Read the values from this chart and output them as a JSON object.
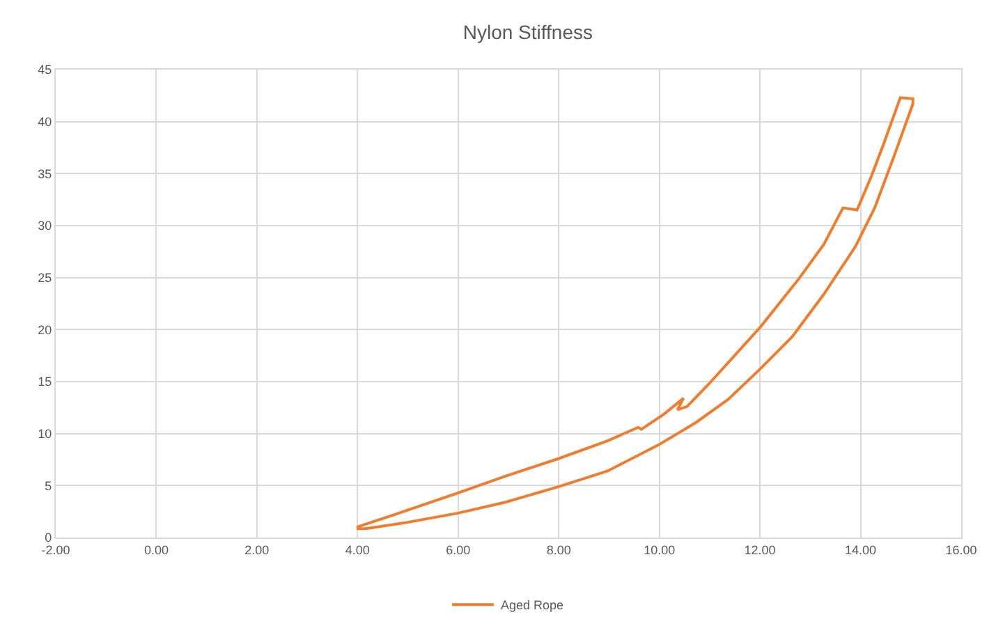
{
  "chart_data": {
    "type": "line",
    "title": "Nylon Stiffness",
    "series": [
      {
        "name": "Aged Rope",
        "color": "#ed7d31",
        "x": [
          3.98,
          4.67,
          6.0,
          6.94,
          8.0,
          8.97,
          9.58,
          9.64,
          10.1,
          10.48,
          10.36,
          10.55,
          10.99,
          12.0,
          12.76,
          13.27,
          13.65,
          13.93,
          14.22,
          14.47,
          14.79,
          15.04,
          15.04,
          14.66,
          14.28,
          13.9,
          13.27,
          12.64,
          12.0,
          11.37,
          10.74,
          9.98,
          8.97,
          8.0,
          6.94,
          6.0,
          4.92,
          4.16,
          3.98
        ],
        "values": [
          1.0,
          2.1,
          4.3,
          5.9,
          7.6,
          9.3,
          10.6,
          10.4,
          11.9,
          13.4,
          12.3,
          12.6,
          14.8,
          20.2,
          24.8,
          28.2,
          31.7,
          31.5,
          34.8,
          38.0,
          42.3,
          42.2,
          41.7,
          36.6,
          31.7,
          28.0,
          23.4,
          19.3,
          16.2,
          13.3,
          11.1,
          8.9,
          6.4,
          4.9,
          3.4,
          2.35,
          1.4,
          0.86,
          0.86
        ]
      }
    ],
    "xlim": [
      -2,
      16
    ],
    "xticks": [
      {
        "value": -2,
        "label": "-2.00"
      },
      {
        "value": 0,
        "label": "0.00"
      },
      {
        "value": 2,
        "label": "2.00"
      },
      {
        "value": 4,
        "label": "4.00"
      },
      {
        "value": 6,
        "label": "6.00"
      },
      {
        "value": 8,
        "label": "8.00"
      },
      {
        "value": 10,
        "label": "10.00"
      },
      {
        "value": 12,
        "label": "12.00"
      },
      {
        "value": 14,
        "label": "14.00"
      },
      {
        "value": 16,
        "label": "16.00"
      }
    ],
    "ylim": [
      0,
      45
    ],
    "yticks": [
      0,
      5,
      10,
      15,
      20,
      25,
      30,
      35,
      40,
      45
    ],
    "grid": true,
    "legend": "bottom",
    "marker": "none",
    "line_style": "solid"
  }
}
